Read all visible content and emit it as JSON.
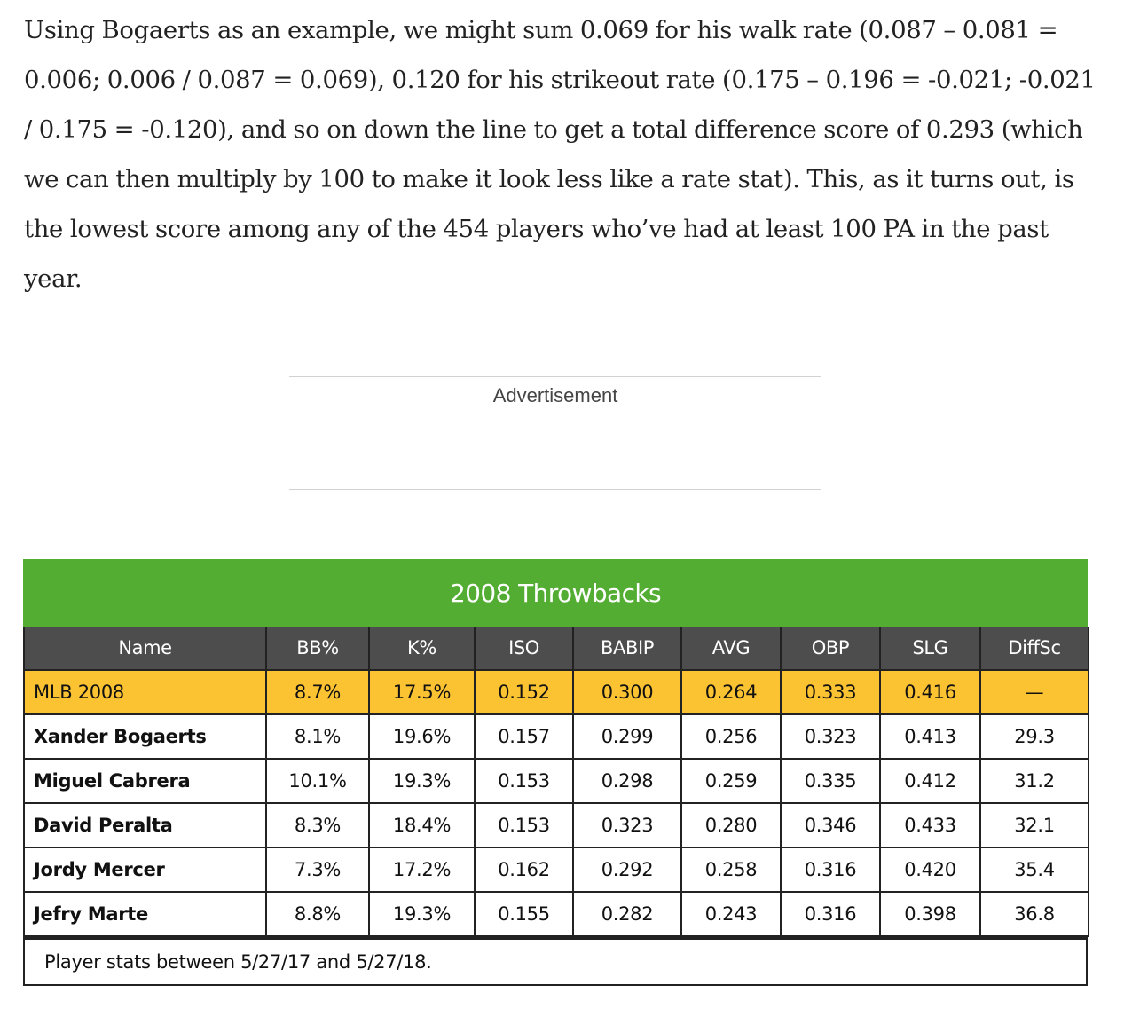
{
  "article": {
    "paragraph": "Using Bogaerts as an example, we might sum 0.069 for his walk rate (0.087 – 0.081 = 0.006; 0.006 / 0.087 = 0.069), 0.120 for his strikeout rate (0.175 – 0.196 = -0.021; -0.021 / 0.175 = -0.120), and so on down the line to get a total difference score of 0.293 (which we can then multiply by 100 to make it look less like a rate stat). This, as it turns out, is the lowest score among any of the 454 players who’ve had at least 100 PA in the past year."
  },
  "ad": {
    "label": "Advertisement"
  },
  "table": {
    "title": "2008 Throwbacks",
    "headers": [
      "Name",
      "BB%",
      "K%",
      "ISO",
      "BABIP",
      "AVG",
      "OBP",
      "SLG",
      "DiffSc"
    ],
    "rows": [
      [
        "MLB 2008",
        "8.7%",
        "17.5%",
        "0.152",
        "0.300",
        "0.264",
        "0.333",
        "0.416",
        "—"
      ],
      [
        "Xander Bogaerts",
        "8.1%",
        "19.6%",
        "0.157",
        "0.299",
        "0.256",
        "0.323",
        "0.413",
        "29.3"
      ],
      [
        "Miguel Cabrera",
        "10.1%",
        "19.3%",
        "0.153",
        "0.298",
        "0.259",
        "0.335",
        "0.412",
        "31.2"
      ],
      [
        "David Peralta",
        "8.3%",
        "18.4%",
        "0.153",
        "0.323",
        "0.280",
        "0.346",
        "0.433",
        "32.1"
      ],
      [
        "Jordy Mercer",
        "7.3%",
        "17.2%",
        "0.162",
        "0.292",
        "0.258",
        "0.316",
        "0.420",
        "35.4"
      ],
      [
        "Jefry Marte",
        "8.8%",
        "19.3%",
        "0.155",
        "0.282",
        "0.243",
        "0.316",
        "0.398",
        "36.8"
      ]
    ],
    "note": "Player stats between 5/27/17 and 5/27/18.",
    "colors": {
      "title_bg": "#53ad32",
      "header_bg": "#4d4d4d",
      "highlight_bg": "#fbc232"
    }
  }
}
